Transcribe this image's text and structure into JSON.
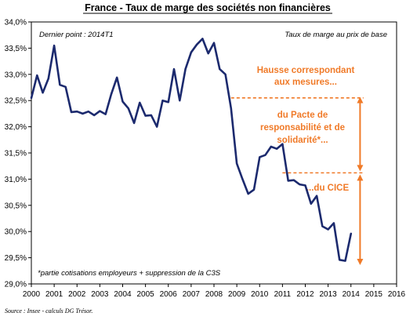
{
  "chart_data": {
    "type": "line",
    "title": "France - Taux de marge des sociétés non financières",
    "subtitle": "Taux de marge au prix de base",
    "last_point_label": "Dernier point : 2014T1",
    "footnote": "*partie cotisations employeurs  + suppression de la C3S",
    "source": "Source : Insee - calculs DG Trésor.",
    "xlabel": "",
    "ylabel": "",
    "xlim": [
      2000,
      2016
    ],
    "ylim": [
      29.0,
      34.0
    ],
    "grid": false,
    "x_ticks": [
      "2000",
      "2001",
      "2002",
      "2003",
      "2004",
      "2005",
      "2006",
      "2007",
      "2008",
      "2009",
      "2010",
      "2011",
      "2012",
      "2013",
      "2014",
      "2015",
      "2016"
    ],
    "y_ticks": [
      "29,0%",
      "29,5%",
      "30,0%",
      "30,5%",
      "31,0%",
      "31,5%",
      "32,0%",
      "32,5%",
      "33,0%",
      "33,5%",
      "34,0%"
    ],
    "y_tick_values": [
      29.0,
      29.5,
      30.0,
      30.5,
      31.0,
      31.5,
      32.0,
      32.5,
      33.0,
      33.5,
      34.0
    ],
    "series": [
      {
        "color": "#1c2a6e",
        "x": [
          2000.0,
          2000.25,
          2000.5,
          2000.75,
          2001.0,
          2001.25,
          2001.5,
          2001.75,
          2002.0,
          2002.25,
          2002.5,
          2002.75,
          2003.0,
          2003.25,
          2003.5,
          2003.75,
          2004.0,
          2004.25,
          2004.5,
          2004.75,
          2005.0,
          2005.25,
          2005.5,
          2005.75,
          2006.0,
          2006.25,
          2006.5,
          2006.75,
          2007.0,
          2007.25,
          2007.5,
          2007.75,
          2008.0,
          2008.25,
          2008.5,
          2008.75,
          2009.0,
          2009.25,
          2009.5,
          2009.75,
          2010.0,
          2010.25,
          2010.5,
          2010.75,
          2011.0,
          2011.25,
          2011.5,
          2011.75,
          2012.0,
          2012.25,
          2012.5,
          2012.75,
          2013.0,
          2013.25,
          2013.5,
          2013.75,
          2014.0
        ],
        "values": [
          32.55,
          32.98,
          32.65,
          32.92,
          33.55,
          32.8,
          32.76,
          32.28,
          32.29,
          32.25,
          32.29,
          32.22,
          32.3,
          32.24,
          32.62,
          32.94,
          32.48,
          32.35,
          32.07,
          32.46,
          32.21,
          32.22,
          32.0,
          32.5,
          32.47,
          33.1,
          32.5,
          33.1,
          33.42,
          33.57,
          33.68,
          33.4,
          33.6,
          33.1,
          33.0,
          32.35,
          31.3,
          31.0,
          30.72,
          30.8,
          31.42,
          31.46,
          31.62,
          31.58,
          31.67,
          30.97,
          30.98,
          30.9,
          30.88,
          30.53,
          30.68,
          30.1,
          30.04,
          30.16,
          29.46,
          29.44,
          29.96
        ]
      }
    ],
    "annotations": {
      "color": "#f07a28",
      "heading_lines": [
        "Hausse correspondant",
        "aux mesures..."
      ],
      "pacte_lines": [
        "du Pacte de",
        "responsabilité et de",
        "solidarité*..."
      ],
      "cice_label": "...du CICE",
      "levels": {
        "pacte_top": 32.55,
        "cice_top": 31.12,
        "bottom": 29.46
      },
      "line_start_x": {
        "pacte": 2008.75,
        "cice": 2011.0
      },
      "arrow_x": 2014.4
    }
  }
}
